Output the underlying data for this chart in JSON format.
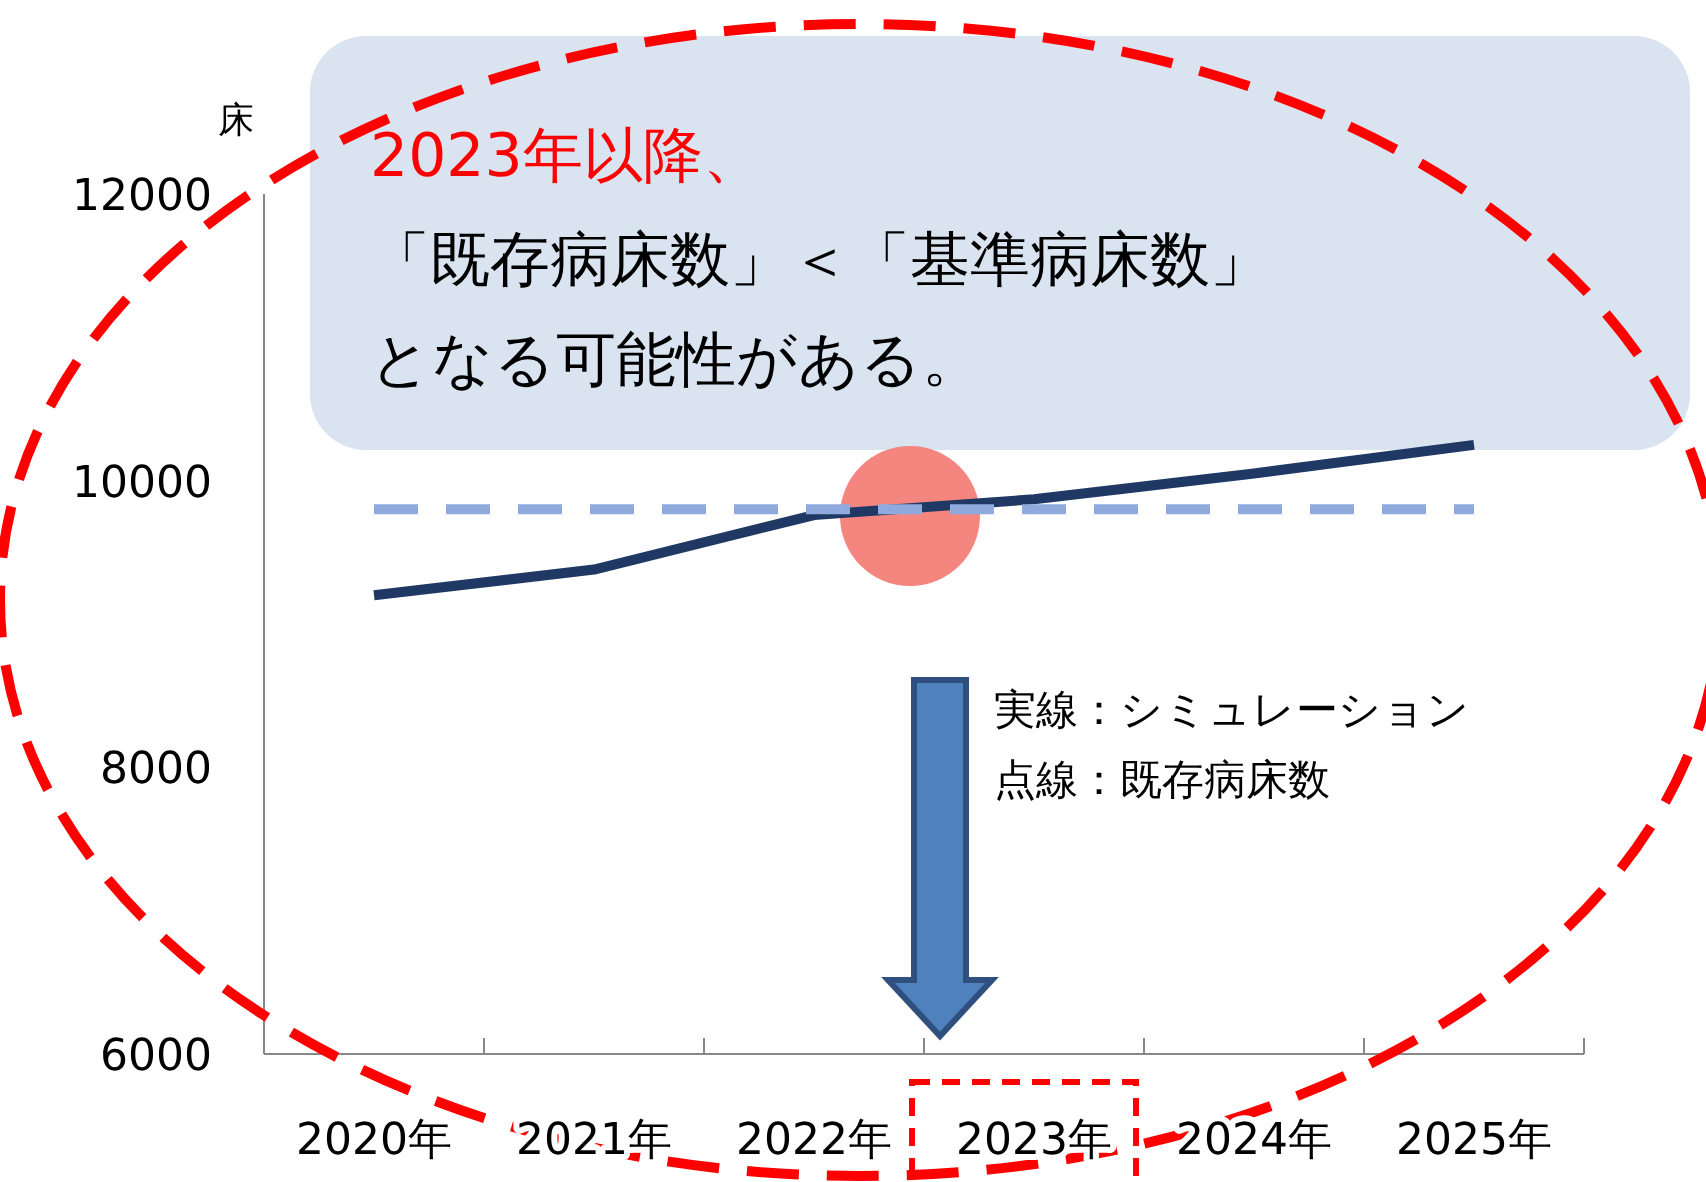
{
  "chart_data": {
    "type": "line",
    "ylabel": "床",
    "categories": [
      "2020年",
      "2021年",
      "2022年",
      "2023年",
      "2024年",
      "2025年"
    ],
    "series": [
      {
        "color": "#1f3864",
        "values": [
          9200,
          9380,
          9760,
          9870,
          10050,
          10250
        ],
        "line_style": "solid"
      },
      {
        "color": "#8faadc",
        "values": [
          9800,
          9800,
          9800,
          9800,
          9800,
          9800
        ],
        "line_style": "dashed"
      }
    ],
    "ylim": [
      6000,
      12000
    ],
    "yticks": [
      6000,
      8000,
      10000,
      12000
    ],
    "grid": false,
    "marker": "none",
    "annotations": [
      "2023年以降、",
      "「既存病床数」＜「基準病床数」",
      "となる可能性がある。",
      "実線：シミュレーション",
      "点線：既存病床数"
    ]
  }
}
